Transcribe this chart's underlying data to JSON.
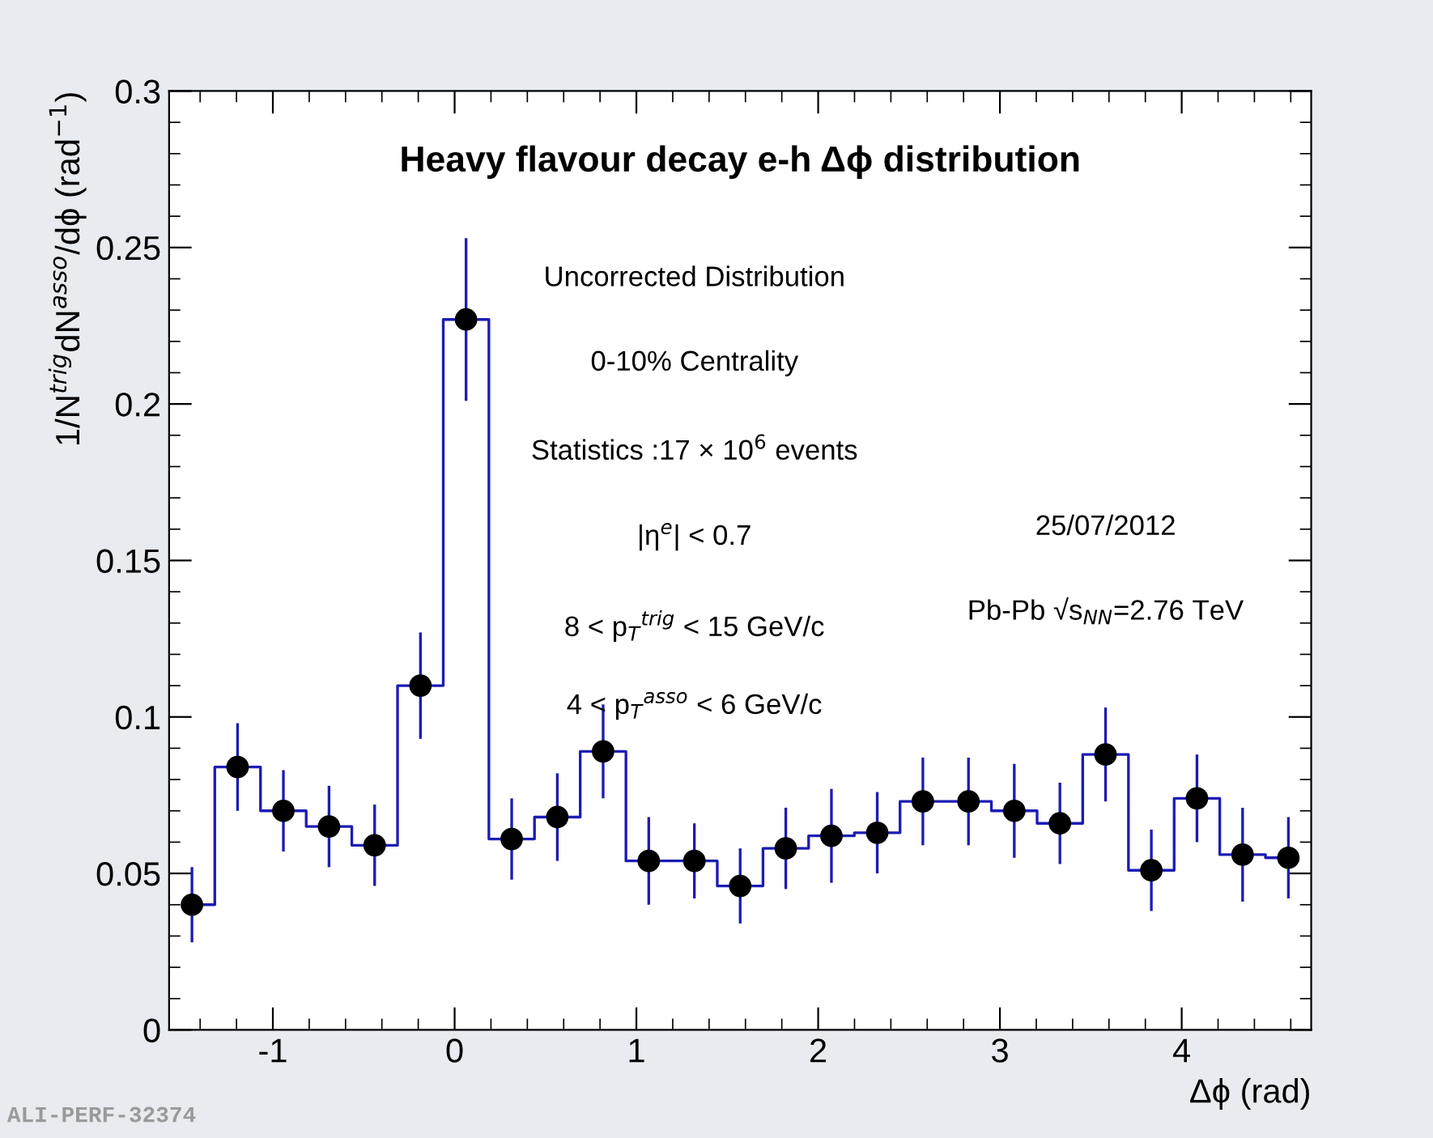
{
  "chart_data": {
    "type": "step",
    "title": "Heavy flavour decay e-h Δϕ distribution",
    "xlabel": "Δϕ (rad)",
    "ylabel": "1/N$^{trig}$dN$^{asso}$/dϕ (rad$^{−1}$)",
    "x": [
      -1.445,
      -1.194,
      -0.942,
      -0.691,
      -0.44,
      -0.188,
      0.063,
      0.314,
      0.565,
      0.817,
      1.068,
      1.319,
      1.571,
      1.822,
      2.073,
      2.325,
      2.576,
      2.827,
      3.079,
      3.33,
      3.581,
      3.833,
      4.084,
      4.335,
      4.587
    ],
    "series": [
      {
        "color": "#1c1cb4",
        "values": [
          0.04,
          0.084,
          0.07,
          0.065,
          0.059,
          0.11,
          0.227,
          0.061,
          0.068,
          0.089,
          0.054,
          0.054,
          0.046,
          0.058,
          0.062,
          0.063,
          0.073,
          0.073,
          0.07,
          0.066,
          0.088,
          0.051,
          0.074,
          0.056,
          0.055
        ],
        "errors": [
          0.012,
          0.014,
          0.013,
          0.013,
          0.013,
          0.017,
          0.026,
          0.013,
          0.014,
          0.015,
          0.014,
          0.012,
          0.012,
          0.013,
          0.015,
          0.013,
          0.014,
          0.014,
          0.015,
          0.013,
          0.015,
          0.013,
          0.014,
          0.015,
          0.013
        ]
      }
    ],
    "marker": "circle",
    "xlim": [
      -1.5708,
      4.7124
    ],
    "xticks": [
      -1,
      0,
      1,
      2,
      3,
      4
    ],
    "ylim": [
      0,
      0.3
    ],
    "yticks": [
      0,
      0.05,
      0.1,
      0.15,
      0.2,
      0.25,
      0.3
    ],
    "annotations": [
      "Uncorrected Distribution",
      "0-10% Centrality",
      "Statistics :17 × 10$^{6}$ events",
      "|η$^{e}$| < 0.7",
      "8 < p$_{T}$$^{trig}$ < 15 GeV/c",
      "4 < p$_{T}$$^{asso}$ < 6 GeV/c",
      "25/07/2012",
      "Pb-Pb √s$_{NN}$=2.76 TeV",
      "ALI-PERF-32374"
    ]
  }
}
